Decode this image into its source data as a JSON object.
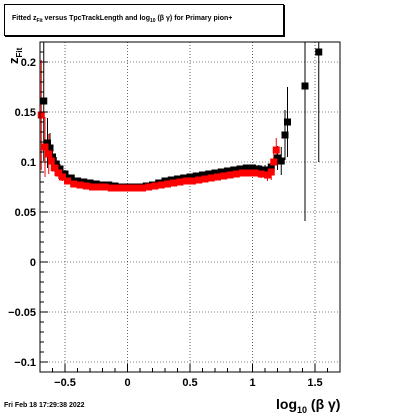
{
  "chart_data": {
    "type": "scatter",
    "title": {
      "prefix": "Fitted  z",
      "prefix_sub": "Fit",
      "middle": "  versus TpcTrackLength and log",
      "middle_sub": "10",
      "suffix": " (β  γ) for Primary pion+"
    },
    "xlabel": {
      "main": "log",
      "sub": "10",
      "suffix": " (β γ)"
    },
    "ylabel": {
      "main": "z",
      "sub": "Fit"
    },
    "xlim": [
      -0.7,
      1.7
    ],
    "ylim": [
      -0.11,
      0.22
    ],
    "x_ticks": [
      -0.5,
      0,
      0.5,
      1,
      1.5
    ],
    "x_tick_labels": [
      "−0.5",
      "0",
      "0.5",
      "1",
      "1.5"
    ],
    "y_ticks": [
      -0.1,
      -0.05,
      0,
      0.05,
      0.1,
      0.15,
      0.2
    ],
    "y_tick_labels": [
      "−0.1",
      "−0.05",
      "0",
      "0.05",
      "0.1",
      "0.15",
      "0.2"
    ],
    "grid": true,
    "series": [
      {
        "color": "#000000",
        "points": [
          [
            -0.67,
            0.161,
            0.06
          ],
          [
            -0.64,
            0.119,
            0.025
          ],
          [
            -0.62,
            0.114,
            0.015
          ],
          [
            -0.6,
            0.105,
            0.01
          ],
          [
            -0.57,
            0.098,
            0.007
          ],
          [
            -0.54,
            0.093,
            0.005
          ],
          [
            -0.5,
            0.088,
            0.004
          ],
          [
            -0.45,
            0.084,
            0.003
          ],
          [
            -0.4,
            0.081,
            0.002
          ],
          [
            -0.35,
            0.08,
            0.002
          ],
          [
            -0.3,
            0.079,
            0.002
          ],
          [
            -0.25,
            0.078,
            0.001
          ],
          [
            -0.2,
            0.077,
            0.001
          ],
          [
            -0.15,
            0.077,
            0.001
          ],
          [
            -0.1,
            0.076,
            0.001
          ],
          [
            -0.05,
            0.075,
            0.001
          ],
          [
            0.0,
            0.075,
            0.001
          ],
          [
            0.05,
            0.075,
            0.001
          ],
          [
            0.1,
            0.075,
            0.001
          ],
          [
            0.15,
            0.076,
            0.001
          ],
          [
            0.2,
            0.077,
            0.001
          ],
          [
            0.25,
            0.079,
            0.001
          ],
          [
            0.3,
            0.081,
            0.001
          ],
          [
            0.35,
            0.082,
            0.001
          ],
          [
            0.4,
            0.083,
            0.001
          ],
          [
            0.45,
            0.084,
            0.001
          ],
          [
            0.5,
            0.085,
            0.001
          ],
          [
            0.55,
            0.086,
            0.001
          ],
          [
            0.6,
            0.087,
            0.002
          ],
          [
            0.65,
            0.088,
            0.002
          ],
          [
            0.7,
            0.089,
            0.002
          ],
          [
            0.75,
            0.09,
            0.002
          ],
          [
            0.8,
            0.091,
            0.002
          ],
          [
            0.85,
            0.092,
            0.002
          ],
          [
            0.9,
            0.093,
            0.002
          ],
          [
            0.95,
            0.094,
            0.003
          ],
          [
            1.0,
            0.094,
            0.003
          ],
          [
            1.05,
            0.093,
            0.004
          ],
          [
            1.1,
            0.092,
            0.005
          ],
          [
            1.15,
            0.095,
            0.008
          ],
          [
            1.2,
            0.104,
            0.012
          ],
          [
            1.23,
            0.101,
            0.014
          ],
          [
            1.26,
            0.127,
            0.025
          ],
          [
            1.28,
            0.14,
            0.035
          ],
          [
            1.42,
            0.176,
            0.135
          ],
          [
            1.53,
            0.21,
            0.11
          ]
        ]
      },
      {
        "color": "#ff0000",
        "points": [
          [
            -0.69,
            0.147,
            0.055
          ],
          [
            -0.66,
            0.115,
            0.03
          ],
          [
            -0.63,
            0.108,
            0.02
          ],
          [
            -0.61,
            0.101,
            0.01
          ],
          [
            -0.58,
            0.094,
            0.008
          ],
          [
            -0.55,
            0.089,
            0.006
          ],
          [
            -0.52,
            0.085,
            0.004
          ],
          [
            -0.48,
            0.081,
            0.003
          ],
          [
            -0.43,
            0.078,
            0.002
          ],
          [
            -0.38,
            0.077,
            0.002
          ],
          [
            -0.33,
            0.076,
            0.002
          ],
          [
            -0.28,
            0.075,
            0.001
          ],
          [
            -0.23,
            0.075,
            0.001
          ],
          [
            -0.18,
            0.075,
            0.001
          ],
          [
            -0.13,
            0.074,
            0.001
          ],
          [
            -0.08,
            0.074,
            0.001
          ],
          [
            -0.03,
            0.074,
            0.001
          ],
          [
            0.02,
            0.074,
            0.001
          ],
          [
            0.07,
            0.074,
            0.001
          ],
          [
            0.12,
            0.074,
            0.001
          ],
          [
            0.17,
            0.075,
            0.001
          ],
          [
            0.22,
            0.076,
            0.001
          ],
          [
            0.27,
            0.077,
            0.001
          ],
          [
            0.32,
            0.078,
            0.001
          ],
          [
            0.37,
            0.079,
            0.001
          ],
          [
            0.42,
            0.08,
            0.001
          ],
          [
            0.47,
            0.081,
            0.001
          ],
          [
            0.52,
            0.081,
            0.001
          ],
          [
            0.57,
            0.082,
            0.001
          ],
          [
            0.62,
            0.083,
            0.002
          ],
          [
            0.67,
            0.084,
            0.002
          ],
          [
            0.72,
            0.085,
            0.002
          ],
          [
            0.77,
            0.086,
            0.002
          ],
          [
            0.82,
            0.087,
            0.002
          ],
          [
            0.87,
            0.088,
            0.002
          ],
          [
            0.92,
            0.089,
            0.002
          ],
          [
            0.97,
            0.089,
            0.003
          ],
          [
            1.02,
            0.089,
            0.003
          ],
          [
            1.07,
            0.088,
            0.004
          ],
          [
            1.12,
            0.087,
            0.006
          ],
          [
            1.15,
            0.09,
            0.008
          ],
          [
            1.17,
            0.1,
            0.01
          ],
          [
            1.19,
            0.112,
            0.012
          ]
        ]
      }
    ]
  },
  "footer": {
    "timestamp": "Fri Feb 18 17:29:38 2022"
  }
}
